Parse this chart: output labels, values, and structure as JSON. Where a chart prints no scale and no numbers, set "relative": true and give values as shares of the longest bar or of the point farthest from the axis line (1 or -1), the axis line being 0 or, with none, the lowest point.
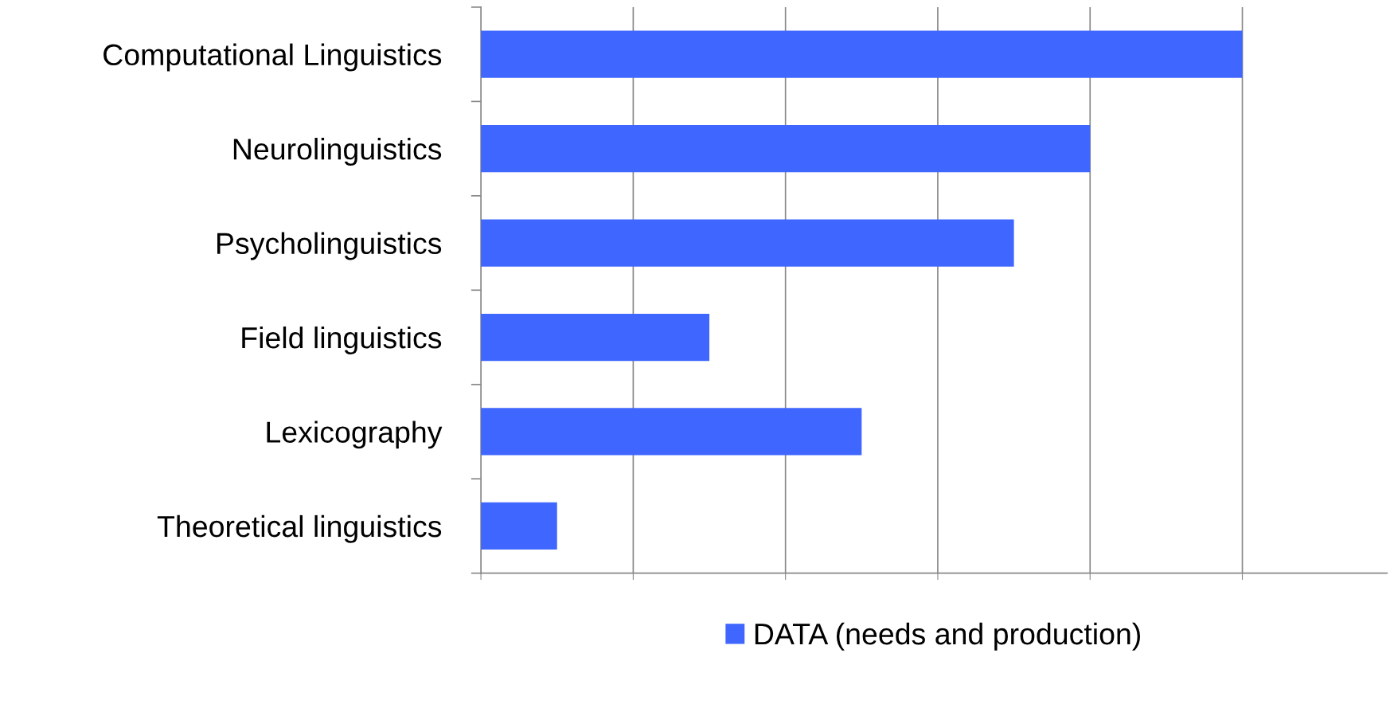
{
  "chart_data": {
    "type": "bar",
    "orientation": "horizontal",
    "relative": true,
    "categories": [
      "Computational Linguistics",
      "Neurolinguistics",
      "Psycholinguistics",
      "Field linguistics",
      "Lexicography",
      "Theoretical linguistics"
    ],
    "series": [
      {
        "name": "DATA (needs and production)",
        "color": "#3f66ff",
        "values": [
          1,
          0.8,
          0.7,
          0.3,
          0.5,
          0.1
        ]
      }
    ],
    "grid": "x",
    "legend": "bottom"
  }
}
